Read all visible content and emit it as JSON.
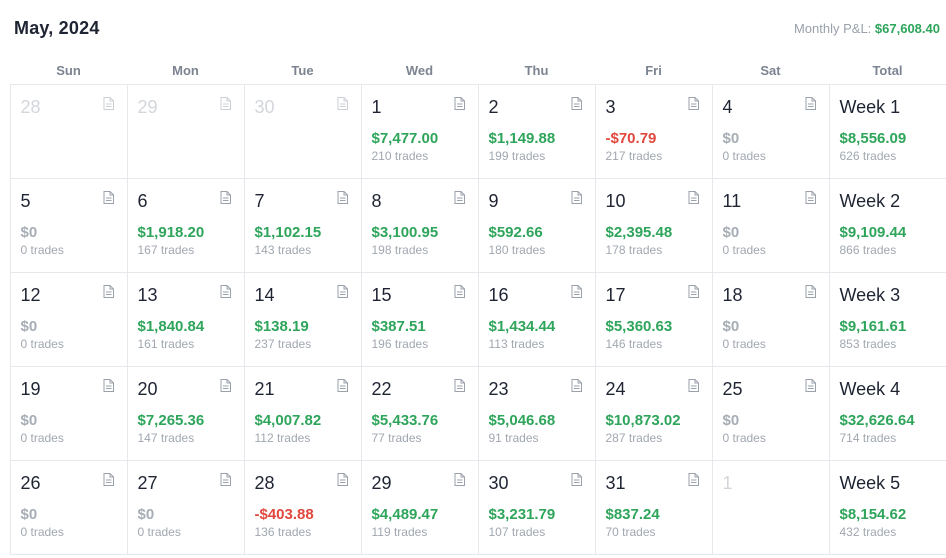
{
  "header": {
    "title": "May, 2024",
    "monthly_pnl_label": "Monthly P&L:",
    "monthly_pnl_value": "$67,608.40"
  },
  "weekdays": [
    "Sun",
    "Mon",
    "Tue",
    "Wed",
    "Thu",
    "Fri",
    "Sat",
    "Total"
  ],
  "weeks": [
    {
      "days": [
        {
          "day": "28",
          "outside": true
        },
        {
          "day": "29",
          "outside": true
        },
        {
          "day": "30",
          "outside": true
        },
        {
          "day": "1",
          "amount": "$7,477.00",
          "trades": "210 trades",
          "sign": "pos"
        },
        {
          "day": "2",
          "amount": "$1,149.88",
          "trades": "199 trades",
          "sign": "pos"
        },
        {
          "day": "3",
          "amount": "-$70.79",
          "trades": "217 trades",
          "sign": "neg"
        },
        {
          "day": "4",
          "amount": "$0",
          "trades": "0 trades",
          "sign": "zero"
        }
      ],
      "total": {
        "label": "Week 1",
        "amount": "$8,556.09",
        "trades": "626 trades"
      }
    },
    {
      "days": [
        {
          "day": "5",
          "amount": "$0",
          "trades": "0 trades",
          "sign": "zero"
        },
        {
          "day": "6",
          "amount": "$1,918.20",
          "trades": "167 trades",
          "sign": "pos"
        },
        {
          "day": "7",
          "amount": "$1,102.15",
          "trades": "143 trades",
          "sign": "pos"
        },
        {
          "day": "8",
          "amount": "$3,100.95",
          "trades": "198 trades",
          "sign": "pos"
        },
        {
          "day": "9",
          "amount": "$592.66",
          "trades": "180 trades",
          "sign": "pos"
        },
        {
          "day": "10",
          "amount": "$2,395.48",
          "trades": "178 trades",
          "sign": "pos"
        },
        {
          "day": "11",
          "amount": "$0",
          "trades": "0 trades",
          "sign": "zero"
        }
      ],
      "total": {
        "label": "Week 2",
        "amount": "$9,109.44",
        "trades": "866 trades"
      }
    },
    {
      "days": [
        {
          "day": "12",
          "amount": "$0",
          "trades": "0 trades",
          "sign": "zero"
        },
        {
          "day": "13",
          "amount": "$1,840.84",
          "trades": "161 trades",
          "sign": "pos"
        },
        {
          "day": "14",
          "amount": "$138.19",
          "trades": "237 trades",
          "sign": "pos"
        },
        {
          "day": "15",
          "amount": "$387.51",
          "trades": "196 trades",
          "sign": "pos"
        },
        {
          "day": "16",
          "amount": "$1,434.44",
          "trades": "113 trades",
          "sign": "pos"
        },
        {
          "day": "17",
          "amount": "$5,360.63",
          "trades": "146 trades",
          "sign": "pos"
        },
        {
          "day": "18",
          "amount": "$0",
          "trades": "0 trades",
          "sign": "zero"
        }
      ],
      "total": {
        "label": "Week 3",
        "amount": "$9,161.61",
        "trades": "853 trades"
      }
    },
    {
      "days": [
        {
          "day": "19",
          "amount": "$0",
          "trades": "0 trades",
          "sign": "zero"
        },
        {
          "day": "20",
          "amount": "$7,265.36",
          "trades": "147 trades",
          "sign": "pos"
        },
        {
          "day": "21",
          "amount": "$4,007.82",
          "trades": "112 trades",
          "sign": "pos"
        },
        {
          "day": "22",
          "amount": "$5,433.76",
          "trades": "77 trades",
          "sign": "pos"
        },
        {
          "day": "23",
          "amount": "$5,046.68",
          "trades": "91 trades",
          "sign": "pos"
        },
        {
          "day": "24",
          "amount": "$10,873.02",
          "trades": "287 trades",
          "sign": "pos"
        },
        {
          "day": "25",
          "amount": "$0",
          "trades": "0 trades",
          "sign": "zero"
        }
      ],
      "total": {
        "label": "Week 4",
        "amount": "$32,626.64",
        "trades": "714 trades"
      }
    },
    {
      "days": [
        {
          "day": "26",
          "amount": "$0",
          "trades": "0 trades",
          "sign": "zero"
        },
        {
          "day": "27",
          "amount": "$0",
          "trades": "0 trades",
          "sign": "zero"
        },
        {
          "day": "28",
          "amount": "-$403.88",
          "trades": "136 trades",
          "sign": "neg"
        },
        {
          "day": "29",
          "amount": "$4,489.47",
          "trades": "119 trades",
          "sign": "pos"
        },
        {
          "day": "30",
          "amount": "$3,231.79",
          "trades": "107 trades",
          "sign": "pos"
        },
        {
          "day": "31",
          "amount": "$837.24",
          "trades": "70 trades",
          "sign": "pos"
        },
        {
          "day": "1",
          "outside": true,
          "no_note": true
        }
      ],
      "total": {
        "label": "Week 5",
        "amount": "$8,154.62",
        "trades": "432 trades"
      }
    }
  ],
  "icons": {
    "note": "note-icon"
  },
  "colors": {
    "positive": "#2ea55b",
    "negative": "#e0483d",
    "neutral": "#a7adb5"
  }
}
